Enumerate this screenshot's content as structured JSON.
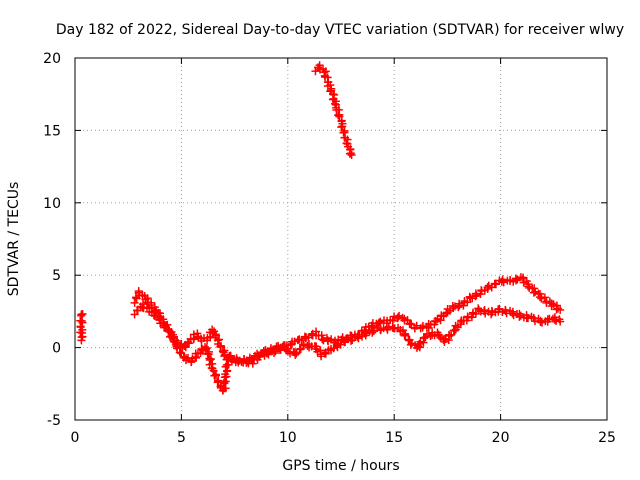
{
  "chart_data": {
    "type": "scatter",
    "title": "Day 182 of 2022, Sidereal Day-to-day VTEC variation (SDTVAR) for receiver wlwy",
    "xlabel": "GPS time / hours",
    "ylabel": "SDTVAR / TECUs",
    "xlim": [
      0,
      25
    ],
    "ylim": [
      -5,
      20
    ],
    "xticks": [
      0,
      5,
      10,
      15,
      20,
      25
    ],
    "yticks": [
      -5,
      0,
      5,
      10,
      15,
      20
    ],
    "grid": true,
    "marker": "+",
    "colors": {
      "series": "#ff0000",
      "grid": "#a0a0a0",
      "axes": "#000000"
    },
    "series": [
      {
        "name": "isolated_early",
        "points": [
          [
            0.3,
            2.4
          ],
          [
            0.3,
            2.1
          ],
          [
            0.3,
            0.8
          ],
          [
            0.3,
            0.5
          ]
        ]
      },
      {
        "name": "main_upper",
        "points": [
          [
            2.8,
            3.2
          ],
          [
            3.0,
            3.8
          ],
          [
            3.3,
            3.4
          ],
          [
            3.6,
            2.9
          ],
          [
            3.9,
            2.4
          ],
          [
            4.2,
            1.7
          ],
          [
            4.5,
            1.0
          ],
          [
            4.8,
            0.4
          ],
          [
            5.1,
            0.0
          ],
          [
            5.4,
            0.4
          ],
          [
            5.7,
            0.9
          ],
          [
            6.0,
            0.5
          ],
          [
            6.3,
            0.7
          ],
          [
            6.5,
            1.2
          ],
          [
            6.8,
            0.2
          ],
          [
            7.1,
            -0.6
          ],
          [
            7.5,
            -0.9
          ],
          [
            8.0,
            -0.9
          ],
          [
            8.5,
            -0.6
          ],
          [
            9.0,
            -0.2
          ],
          [
            9.5,
            0.0
          ],
          [
            10.0,
            0.2
          ],
          [
            10.5,
            0.5
          ],
          [
            11.0,
            0.8
          ],
          [
            11.3,
            1.0
          ],
          [
            11.7,
            0.6
          ],
          [
            12.2,
            0.4
          ],
          [
            12.8,
            0.7
          ],
          [
            13.3,
            0.9
          ],
          [
            13.8,
            1.4
          ],
          [
            14.3,
            1.8
          ],
          [
            14.8,
            1.8
          ],
          [
            15.2,
            2.2
          ],
          [
            15.6,
            1.8
          ],
          [
            16.0,
            1.4
          ],
          [
            16.5,
            1.4
          ],
          [
            17.0,
            1.8
          ],
          [
            17.4,
            2.4
          ],
          [
            17.8,
            2.8
          ],
          [
            18.2,
            3.0
          ],
          [
            18.6,
            3.4
          ],
          [
            19.0,
            3.8
          ],
          [
            19.5,
            4.2
          ],
          [
            20.0,
            4.6
          ],
          [
            20.5,
            4.6
          ],
          [
            21.0,
            4.8
          ],
          [
            21.4,
            4.2
          ],
          [
            21.8,
            3.6
          ],
          [
            22.2,
            3.2
          ],
          [
            22.6,
            2.8
          ],
          [
            22.8,
            2.6
          ]
        ]
      },
      {
        "name": "main_lower",
        "points": [
          [
            2.8,
            2.4
          ],
          [
            3.2,
            2.9
          ],
          [
            3.6,
            2.5
          ],
          [
            4.0,
            1.9
          ],
          [
            4.4,
            1.1
          ],
          [
            4.8,
            0.1
          ],
          [
            5.1,
            -0.7
          ],
          [
            5.5,
            -0.9
          ],
          [
            5.9,
            -0.2
          ],
          [
            6.2,
            0.0
          ],
          [
            6.4,
            -1.2
          ],
          [
            6.6,
            -1.9
          ],
          [
            6.8,
            -2.6
          ],
          [
            7.0,
            -3.0
          ],
          [
            7.2,
            -0.5
          ],
          [
            7.8,
            -1.0
          ],
          [
            8.3,
            -1.0
          ],
          [
            8.8,
            -0.5
          ],
          [
            9.3,
            -0.3
          ],
          [
            9.8,
            0.0
          ],
          [
            10.3,
            -0.5
          ],
          [
            10.8,
            0.2
          ],
          [
            11.3,
            0.0
          ],
          [
            11.6,
            -0.5
          ],
          [
            12.0,
            -0.2
          ],
          [
            12.5,
            0.3
          ],
          [
            13.0,
            0.6
          ],
          [
            13.5,
            0.8
          ],
          [
            14.0,
            1.2
          ],
          [
            14.5,
            1.3
          ],
          [
            15.0,
            1.4
          ],
          [
            15.4,
            1.1
          ],
          [
            15.8,
            0.3
          ],
          [
            16.1,
            0.0
          ],
          [
            16.5,
            0.8
          ],
          [
            17.0,
            1.0
          ],
          [
            17.4,
            0.4
          ],
          [
            17.8,
            1.2
          ],
          [
            18.2,
            1.8
          ],
          [
            18.6,
            2.2
          ],
          [
            19.0,
            2.6
          ],
          [
            19.5,
            2.4
          ],
          [
            20.0,
            2.6
          ],
          [
            20.5,
            2.4
          ],
          [
            21.0,
            2.2
          ],
          [
            21.5,
            2.0
          ],
          [
            22.0,
            1.8
          ],
          [
            22.5,
            2.0
          ],
          [
            22.8,
            1.8
          ]
        ]
      },
      {
        "name": "steep_arc",
        "points": [
          [
            11.3,
            19.2
          ],
          [
            11.5,
            19.4
          ],
          [
            11.7,
            19.1
          ],
          [
            11.9,
            18.3
          ],
          [
            12.1,
            17.5
          ],
          [
            12.3,
            16.6
          ],
          [
            12.5,
            15.6
          ],
          [
            12.7,
            14.6
          ],
          [
            12.9,
            13.6
          ],
          [
            13.0,
            13.3
          ]
        ]
      }
    ]
  }
}
